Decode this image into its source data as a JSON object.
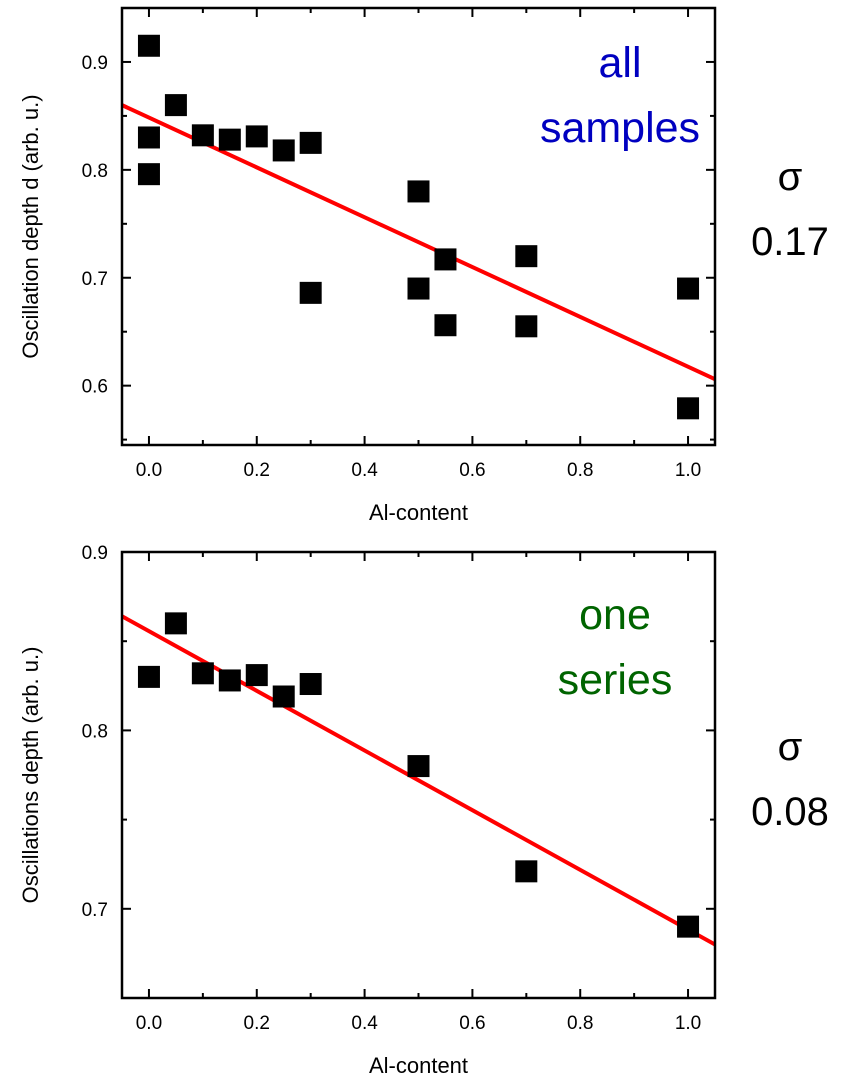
{
  "chart_data": [
    {
      "type": "scatter",
      "xlabel": "Al-content",
      "ylabel": "Oscillation depth d (arb. u.)",
      "xlim": [
        -0.05,
        1.05
      ],
      "ylim": [
        0.545,
        0.95
      ],
      "xticks": [
        0.0,
        0.2,
        0.4,
        0.6,
        0.8,
        1.0
      ],
      "xtick_labels": [
        "0.0",
        "0.2",
        "0.4",
        "0.6",
        "0.8",
        "1.0"
      ],
      "yticks": [
        0.6,
        0.7,
        0.8,
        0.9
      ],
      "ytick_labels": [
        "0.6",
        "0.7",
        "0.8",
        "0.9"
      ],
      "annotation_lines": [
        "all",
        "samples"
      ],
      "annotation_color": "#0000c0",
      "sigma_symbol": "σ",
      "sigma_value": "0.17",
      "marker_color": "#000000",
      "fit_color": "#ff0000",
      "points": [
        {
          "x": 0.0,
          "y": 0.915
        },
        {
          "x": 0.0,
          "y": 0.83
        },
        {
          "x": 0.0,
          "y": 0.796
        },
        {
          "x": 0.05,
          "y": 0.86
        },
        {
          "x": 0.1,
          "y": 0.832
        },
        {
          "x": 0.15,
          "y": 0.828
        },
        {
          "x": 0.2,
          "y": 0.831
        },
        {
          "x": 0.25,
          "y": 0.818
        },
        {
          "x": 0.3,
          "y": 0.825
        },
        {
          "x": 0.3,
          "y": 0.686
        },
        {
          "x": 0.5,
          "y": 0.78
        },
        {
          "x": 0.5,
          "y": 0.69
        },
        {
          "x": 0.55,
          "y": 0.717
        },
        {
          "x": 0.55,
          "y": 0.656
        },
        {
          "x": 0.7,
          "y": 0.72
        },
        {
          "x": 0.7,
          "y": 0.655
        },
        {
          "x": 1.0,
          "y": 0.69
        },
        {
          "x": 1.0,
          "y": 0.579
        }
      ],
      "fit_line": {
        "x": [
          -0.05,
          1.05
        ],
        "y": [
          0.86,
          0.606
        ]
      }
    },
    {
      "type": "scatter",
      "xlabel": "Al-content",
      "ylabel": "Oscillations depth (arb. u.)",
      "xlim": [
        -0.05,
        1.05
      ],
      "ylim": [
        0.65,
        0.9
      ],
      "xticks": [
        0.0,
        0.2,
        0.4,
        0.6,
        0.8,
        1.0
      ],
      "xtick_labels": [
        "0.0",
        "0.2",
        "0.4",
        "0.6",
        "0.8",
        "1.0"
      ],
      "yticks": [
        0.7,
        0.8,
        0.9
      ],
      "ytick_labels": [
        "0.7",
        "0.8",
        "0.9"
      ],
      "annotation_lines": [
        "one",
        "series"
      ],
      "annotation_color": "#006400",
      "sigma_symbol": "σ",
      "sigma_value": "0.08",
      "marker_color": "#000000",
      "fit_color": "#ff0000",
      "points": [
        {
          "x": 0.0,
          "y": 0.83
        },
        {
          "x": 0.05,
          "y": 0.86
        },
        {
          "x": 0.1,
          "y": 0.832
        },
        {
          "x": 0.15,
          "y": 0.828
        },
        {
          "x": 0.2,
          "y": 0.831
        },
        {
          "x": 0.25,
          "y": 0.819
        },
        {
          "x": 0.3,
          "y": 0.826
        },
        {
          "x": 0.5,
          "y": 0.78
        },
        {
          "x": 0.7,
          "y": 0.721
        },
        {
          "x": 1.0,
          "y": 0.69
        }
      ],
      "fit_line": {
        "x": [
          -0.05,
          1.05
        ],
        "y": [
          0.864,
          0.68
        ]
      }
    }
  ]
}
